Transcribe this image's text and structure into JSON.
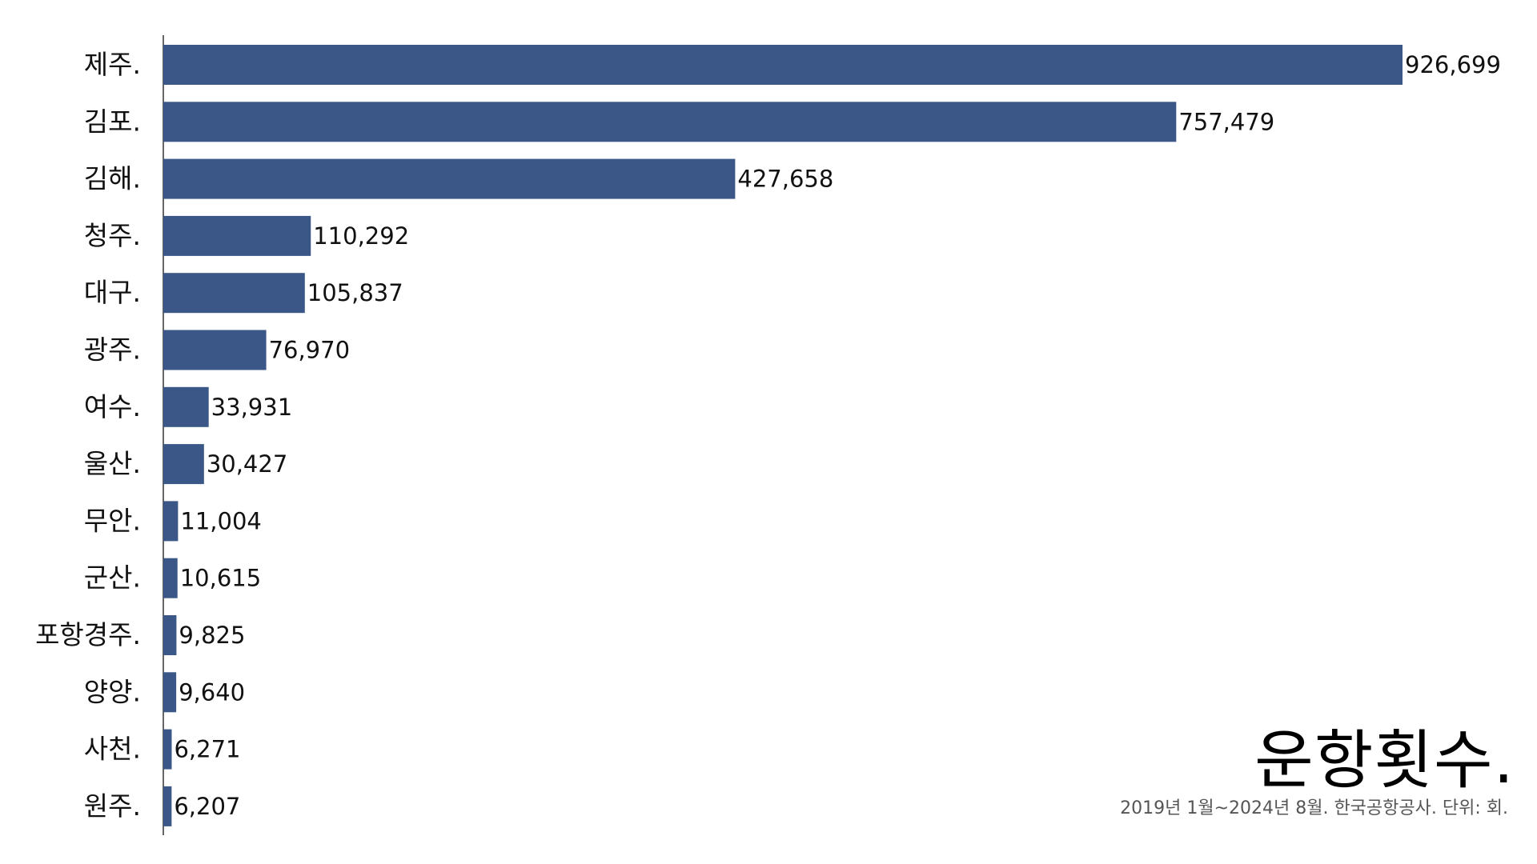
{
  "chart_data": {
    "type": "bar",
    "orientation": "horizontal",
    "title": "운항횟수.",
    "subtitle": "2019년 1월~2024년 8월. 한국공항공사. 단위: 회.",
    "categories": [
      "제주.",
      "김포.",
      "김해.",
      "청주.",
      "대구.",
      "광주.",
      "여수.",
      "울산.",
      "무안.",
      "군산.",
      "포항경주.",
      "양양.",
      "사천.",
      "원주."
    ],
    "values": [
      926699,
      757479,
      427658,
      110292,
      105837,
      76970,
      33931,
      30427,
      11004,
      10615,
      9825,
      9640,
      6271,
      6207
    ],
    "value_labels": [
      "926,699",
      "757,479",
      "427,658",
      "110,292",
      "105,837",
      "76,970",
      "33,931",
      "30,427",
      "11,004",
      "10,615",
      "9,825",
      "9,640",
      "6,271",
      "6,207"
    ],
    "xlim": [
      0,
      926699
    ],
    "grid": false,
    "bar_color": "#3A5787"
  }
}
